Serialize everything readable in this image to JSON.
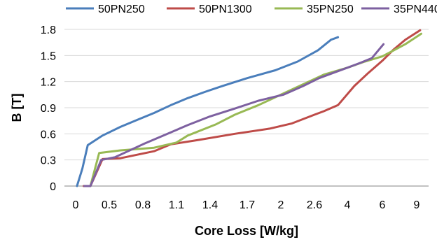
{
  "chart_data": {
    "type": "line",
    "xlabel": "Core Loss [W/kg]",
    "ylabel": "B [T]",
    "x_ticks": [
      "0",
      "0.5",
      "0.8",
      "1.1",
      "1.4",
      "1.7",
      "2",
      "2.6",
      "4",
      "6",
      "9"
    ],
    "y_ticks": [
      "0",
      "0.3",
      "0.6",
      "0.9",
      "1.2",
      "1.5",
      "1.8"
    ],
    "ylim": [
      0,
      1.8
    ],
    "grid": "horizontal",
    "legend_position": "top",
    "series": [
      {
        "name": "50PN250",
        "color": "#4a7ebb",
        "points": [
          [
            0.02,
            0
          ],
          [
            0.1,
            0.2
          ],
          [
            0.18,
            0.47
          ],
          [
            0.28,
            0.52
          ],
          [
            0.4,
            0.58
          ],
          [
            0.6,
            0.68
          ],
          [
            0.75,
            0.76
          ],
          [
            0.9,
            0.84
          ],
          [
            1.05,
            0.93
          ],
          [
            1.2,
            1.01
          ],
          [
            1.35,
            1.08
          ],
          [
            1.5,
            1.15
          ],
          [
            1.7,
            1.24
          ],
          [
            1.95,
            1.33
          ],
          [
            2.3,
            1.43
          ],
          [
            2.75,
            1.56
          ],
          [
            3.3,
            1.68
          ],
          [
            3.6,
            1.71
          ]
        ]
      },
      {
        "name": "50PN1300",
        "color": "#be4b48",
        "points": [
          [
            0.12,
            0
          ],
          [
            0.22,
            0
          ],
          [
            0.4,
            0.31
          ],
          [
            0.6,
            0.32
          ],
          [
            0.9,
            0.4
          ],
          [
            1.05,
            0.48
          ],
          [
            1.3,
            0.53
          ],
          [
            1.6,
            0.6
          ],
          [
            1.9,
            0.66
          ],
          [
            2.2,
            0.72
          ],
          [
            2.6,
            0.82
          ],
          [
            3,
            0.86
          ],
          [
            3.6,
            0.93
          ],
          [
            4.4,
            1.15
          ],
          [
            5.2,
            1.3
          ],
          [
            6,
            1.44
          ],
          [
            7,
            1.57
          ],
          [
            8,
            1.68
          ],
          [
            9.3,
            1.79
          ]
        ]
      },
      {
        "name": "35PN250",
        "color": "#98b954",
        "points": [
          [
            0.15,
            0
          ],
          [
            0.22,
            0
          ],
          [
            0.35,
            0.38
          ],
          [
            0.6,
            0.41
          ],
          [
            0.9,
            0.44
          ],
          [
            1.1,
            0.5
          ],
          [
            1.2,
            0.58
          ],
          [
            1.45,
            0.71
          ],
          [
            1.6,
            0.82
          ],
          [
            1.8,
            0.93
          ],
          [
            2.1,
            1.08
          ],
          [
            2.5,
            1.2
          ],
          [
            3,
            1.28
          ],
          [
            4,
            1.36
          ],
          [
            5,
            1.43
          ],
          [
            6,
            1.49
          ],
          [
            7,
            1.56
          ],
          [
            8,
            1.63
          ],
          [
            9.4,
            1.75
          ]
        ]
      },
      {
        "name": "35PN440",
        "color": "#7d60a0",
        "points": [
          [
            0.13,
            0
          ],
          [
            0.22,
            0
          ],
          [
            0.38,
            0.3
          ],
          [
            0.55,
            0.33
          ],
          [
            0.8,
            0.48
          ],
          [
            1.0,
            0.59
          ],
          [
            1.2,
            0.7
          ],
          [
            1.4,
            0.8
          ],
          [
            1.6,
            0.89
          ],
          [
            1.8,
            0.98
          ],
          [
            2.05,
            1.05
          ],
          [
            2.4,
            1.15
          ],
          [
            2.8,
            1.24
          ],
          [
            3.4,
            1.3
          ],
          [
            4,
            1.36
          ],
          [
            4.8,
            1.42
          ],
          [
            5.4,
            1.47
          ],
          [
            6.1,
            1.63
          ]
        ]
      }
    ]
  }
}
